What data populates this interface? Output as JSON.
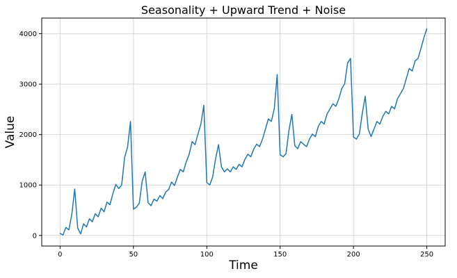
{
  "chart_data": {
    "type": "line",
    "title": "Seasonality + Upward Trend + Noise",
    "xlabel": "Time",
    "ylabel": "Value",
    "x_ticks": [
      0,
      50,
      100,
      150,
      200,
      250
    ],
    "y_ticks": [
      0,
      1000,
      2000,
      3000,
      4000
    ],
    "xlim": [
      -12.5,
      262.5
    ],
    "ylim": [
      -210,
      4310
    ],
    "grid": true,
    "legend": "none",
    "line_color": "#1f77b4",
    "grid_color": "#cccccc",
    "spine_color": "#000000",
    "background": "#ffffff",
    "x_start": 0,
    "x_step": 2,
    "values": [
      40,
      10,
      160,
      110,
      420,
      920,
      150,
      30,
      230,
      170,
      330,
      270,
      430,
      370,
      540,
      470,
      660,
      610,
      830,
      1010,
      930,
      1000,
      1550,
      1750,
      2260,
      520,
      560,
      640,
      1080,
      1260,
      650,
      590,
      720,
      680,
      790,
      730,
      860,
      910,
      1060,
      990,
      1160,
      1310,
      1260,
      1460,
      1610,
      1860,
      1800,
      2010,
      2210,
      2580,
      1050,
      1000,
      1160,
      1520,
      1800,
      1360,
      1260,
      1320,
      1260,
      1360,
      1310,
      1410,
      1360,
      1510,
      1610,
      1560,
      1710,
      1810,
      1760,
      1910,
      2110,
      2310,
      2260,
      2510,
      3190,
      1600,
      1560,
      1620,
      2080,
      2400,
      1780,
      1720,
      1860,
      1810,
      1760,
      1910,
      2010,
      1960,
      2160,
      2260,
      2210,
      2410,
      2510,
      2610,
      2560,
      2710,
      2910,
      3010,
      3420,
      3510,
      1950,
      1910,
      2010,
      2420,
      2760,
      2110,
      1960,
      2110,
      2260,
      2210,
      2360,
      2460,
      2410,
      2560,
      2510,
      2710,
      2810,
      2910,
      3110,
      3310,
      3260,
      3460,
      3510,
      3710,
      3920,
      4100
    ]
  }
}
